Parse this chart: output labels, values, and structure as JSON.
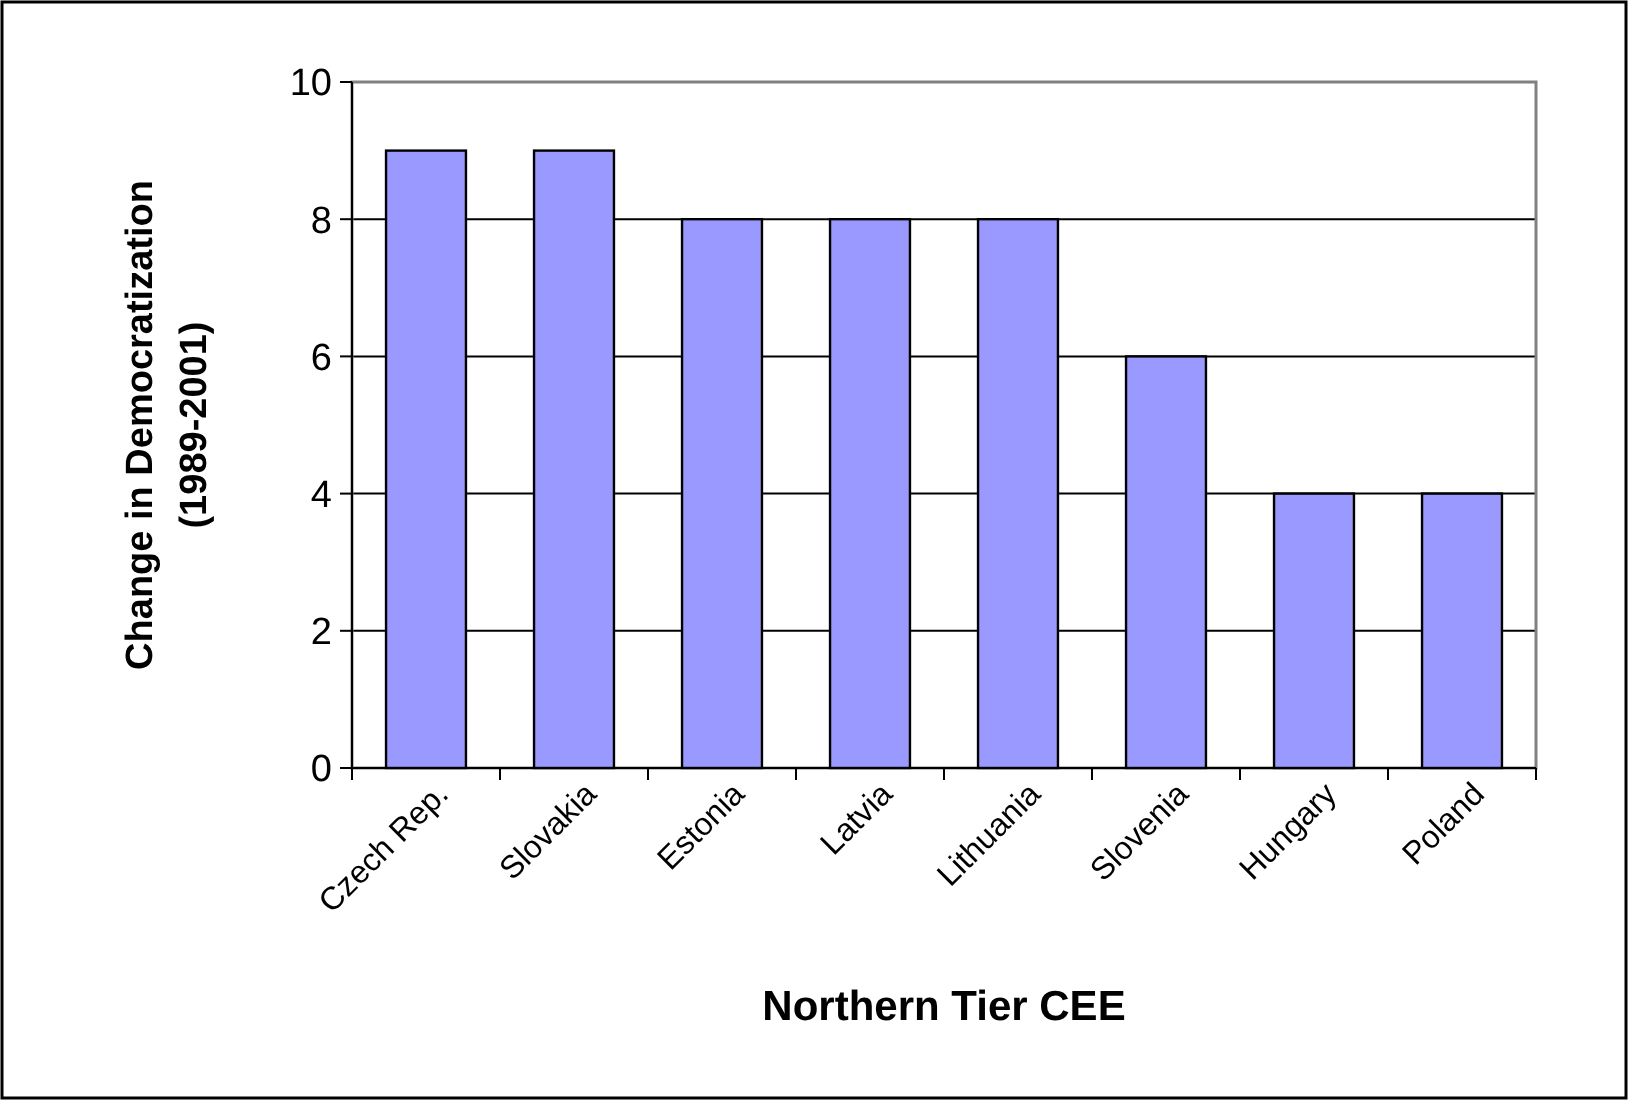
{
  "chart_data": {
    "type": "bar",
    "xlabel": "Northern Tier CEE",
    "ylabel": "Change in Democratization\n(1989-2001)",
    "categories": [
      "Czech Rep.",
      "Slovakia",
      "Estonia",
      "Latvia",
      "Lithuania",
      "Slovenia",
      "Hungary",
      "Poland"
    ],
    "values": [
      9,
      9,
      8,
      8,
      8,
      6,
      4,
      4
    ],
    "color": "#9999ff",
    "ylim": [
      0,
      10
    ],
    "yticks": [
      0,
      2,
      4,
      6,
      8,
      10
    ],
    "grid": "y"
  }
}
